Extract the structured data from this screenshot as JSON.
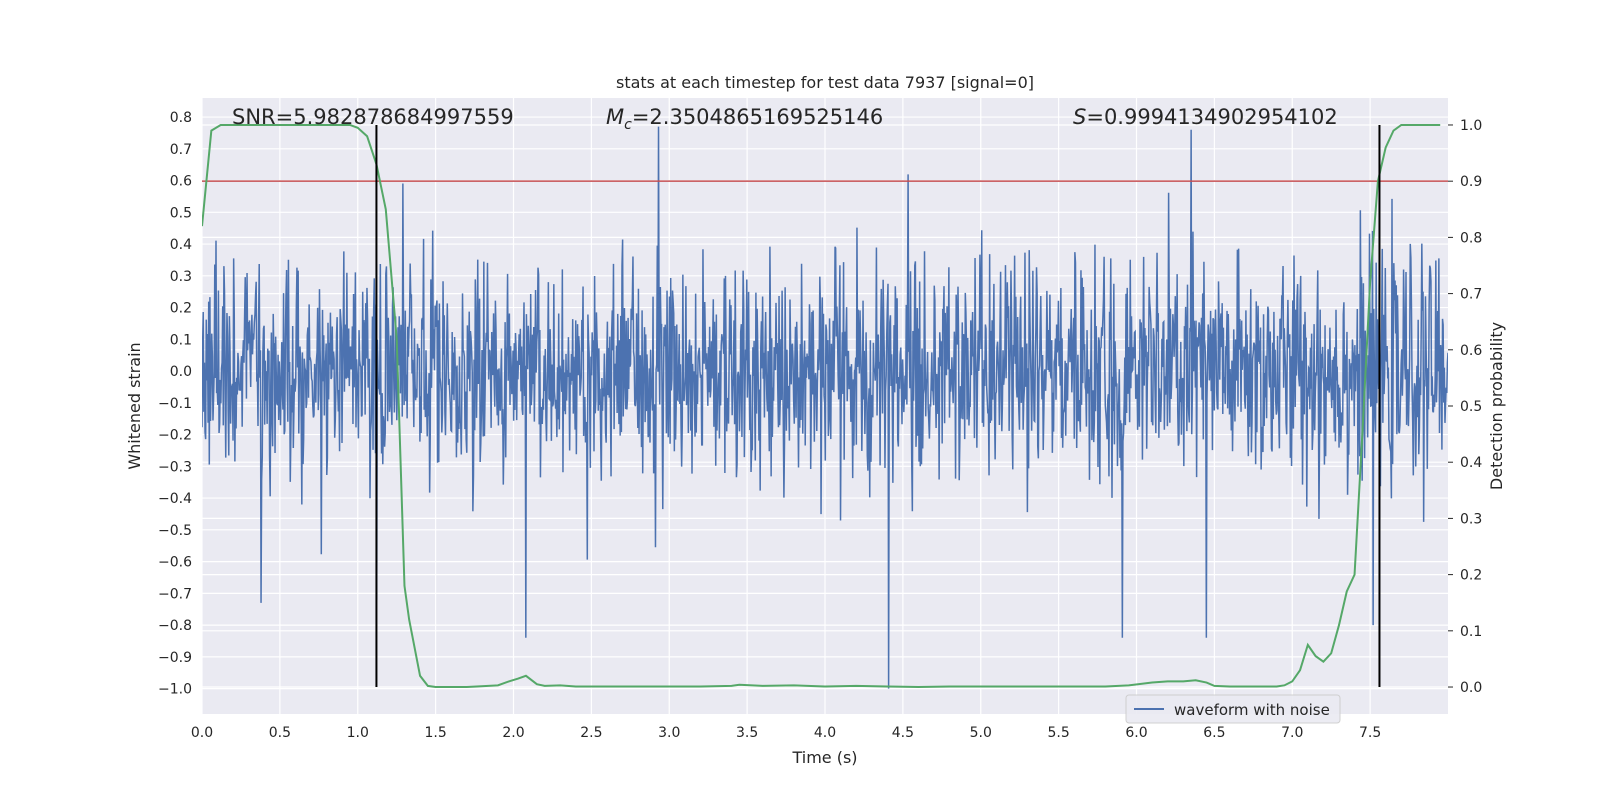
{
  "chart_data": {
    "type": "line",
    "title": "stats at each timestep for test data 7937 [signal=0]",
    "xlabel": "Time (s)",
    "ylabel": "Whitened strain",
    "y2label": "Detection probability",
    "xlim": [
      0.0,
      8.0
    ],
    "ylim": [
      -1.08,
      0.86
    ],
    "y2lim": [
      -0.048,
      1.048
    ],
    "xticks": [
      "0.0",
      "0.5",
      "1.0",
      "1.5",
      "2.0",
      "2.5",
      "3.0",
      "3.5",
      "4.0",
      "4.5",
      "5.0",
      "5.5",
      "6.0",
      "6.5",
      "7.0",
      "7.5"
    ],
    "yticks": [
      "0.8",
      "0.7",
      "0.6",
      "0.5",
      "0.4",
      "0.3",
      "0.2",
      "0.1",
      "0.0",
      "-0.1",
      "-0.2",
      "-0.3",
      "-0.4",
      "-0.5",
      "-0.6",
      "-0.7",
      "-0.8",
      "-0.9",
      "-1.0"
    ],
    "y2ticks": [
      "1.0",
      "0.9",
      "0.8",
      "0.7",
      "0.6",
      "0.5",
      "0.4",
      "0.3",
      "0.2",
      "0.1",
      "0.0"
    ],
    "annotations": {
      "snr": "SNR=5.982878684997559",
      "mc_prefix": "M",
      "mc_sub": "c",
      "mc_value": "=2.3504865169525146",
      "s_prefix": "S",
      "s_value": "=0.9994134902954102"
    },
    "threshold": {
      "axis": "right",
      "value": 0.9
    },
    "vlines": [
      1.12,
      7.56
    ],
    "legend": {
      "placement": "lower-right",
      "entries": [
        "waveform with noise"
      ]
    },
    "grid": true,
    "series": [
      {
        "name": "waveform with noise",
        "axis": "left",
        "kind": "noise",
        "std": 0.17,
        "n_samples": 2048,
        "peaks": [
          {
            "x": 0.38,
            "y": -0.73
          },
          {
            "x": 1.12,
            "y": -0.72
          },
          {
            "x": 2.08,
            "y": -0.84
          },
          {
            "x": 2.93,
            "y": 0.77
          },
          {
            "x": 4.41,
            "y": -1.0
          },
          {
            "x": 5.91,
            "y": -0.84
          },
          {
            "x": 6.35,
            "y": 0.76
          },
          {
            "x": 6.45,
            "y": -0.84
          },
          {
            "x": 7.52,
            "y": -0.8
          }
        ]
      },
      {
        "name": "",
        "axis": "right",
        "x": [
          0.0,
          0.06,
          0.12,
          0.2,
          0.4,
          0.6,
          0.8,
          0.95,
          1.0,
          1.06,
          1.12,
          1.18,
          1.25,
          1.3,
          1.33,
          1.4,
          1.45,
          1.5,
          1.7,
          1.9,
          1.97,
          2.03,
          2.08,
          2.15,
          2.2,
          2.3,
          2.4,
          2.6,
          2.8,
          3.0,
          3.2,
          3.4,
          3.45,
          3.6,
          3.8,
          4.0,
          4.2,
          4.4,
          4.6,
          4.8,
          5.0,
          5.2,
          5.4,
          5.6,
          5.8,
          5.95,
          6.1,
          6.2,
          6.3,
          6.38,
          6.45,
          6.5,
          6.6,
          6.8,
          6.9,
          6.95,
          7.0,
          7.05,
          7.1,
          7.15,
          7.2,
          7.25,
          7.3,
          7.35,
          7.4,
          7.45,
          7.5,
          7.55,
          7.6,
          7.65,
          7.7,
          7.75,
          7.8,
          7.9,
          7.95
        ],
        "values": [
          0.82,
          0.99,
          1.0,
          1.0,
          1.0,
          1.0,
          1.0,
          1.0,
          0.995,
          0.98,
          0.93,
          0.85,
          0.62,
          0.18,
          0.12,
          0.02,
          0.002,
          0.0,
          0.0,
          0.003,
          0.01,
          0.015,
          0.02,
          0.005,
          0.002,
          0.003,
          0.001,
          0.001,
          0.001,
          0.001,
          0.001,
          0.002,
          0.004,
          0.002,
          0.003,
          0.001,
          0.002,
          0.001,
          0.0,
          0.001,
          0.001,
          0.001,
          0.001,
          0.001,
          0.001,
          0.003,
          0.008,
          0.01,
          0.01,
          0.012,
          0.008,
          0.002,
          0.001,
          0.001,
          0.001,
          0.003,
          0.01,
          0.03,
          0.075,
          0.055,
          0.045,
          0.06,
          0.11,
          0.17,
          0.2,
          0.45,
          0.72,
          0.9,
          0.96,
          0.99,
          1.0,
          1.0,
          1.0,
          1.0,
          1.0
        ]
      }
    ],
    "colors": {
      "background": "#eaeaf2",
      "grid": "#ffffff",
      "waveform": "#4c72b0",
      "probability": "#55a868",
      "threshold": "#c44e52",
      "vline": "#000000"
    }
  }
}
